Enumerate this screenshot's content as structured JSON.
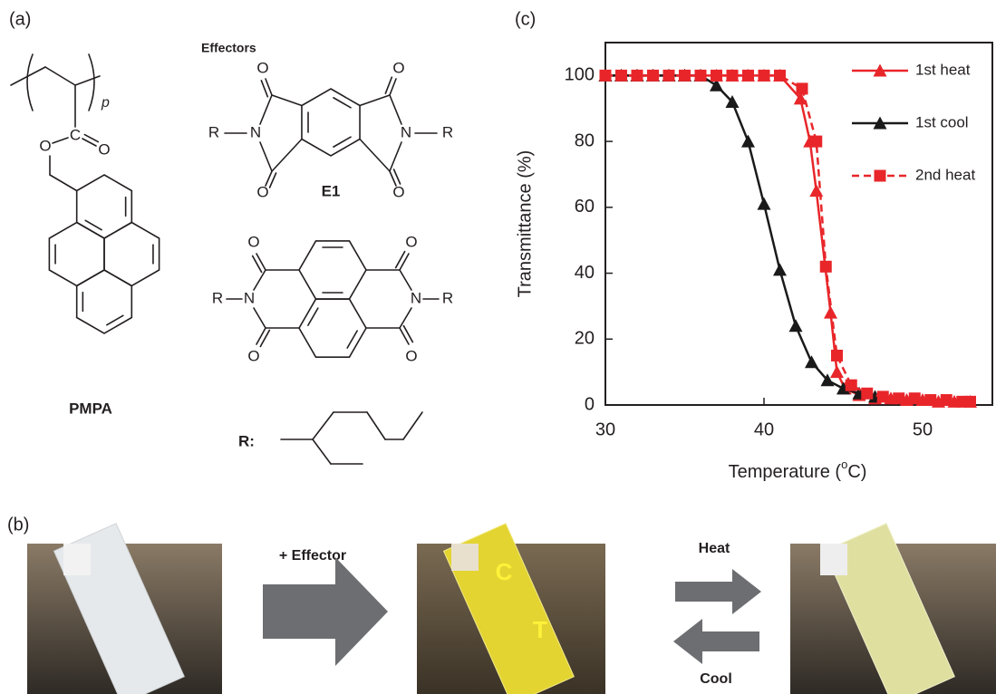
{
  "panel_a": {
    "label": "(a)",
    "effectors_title": "Effectors",
    "polymer_name": "PMPA",
    "repeat_subscript": "p",
    "e1_name": "E1",
    "r_label": "R:",
    "pmpa_atoms": [
      "O",
      "C",
      "O"
    ],
    "e1_atoms": [
      "O",
      "O",
      "O",
      "O",
      "N",
      "N",
      "R",
      "R"
    ],
    "ndi_atoms": [
      "O",
      "O",
      "O",
      "O",
      "N",
      "N",
      "R",
      "R"
    ]
  },
  "panel_b": {
    "label": "(b)",
    "forward_label": "+ Effector",
    "heat_label": "Heat",
    "cool_label": "Cool",
    "cuvette_marks": [
      "C",
      "T"
    ]
  },
  "chart_data": {
    "type": "line",
    "panel_label": "(c)",
    "y_label": "Transmittance (%)",
    "x_label_parts": [
      "Temperature (",
      "o",
      "C)"
    ],
    "xlim": [
      30,
      54.4
    ],
    "ylim": [
      0,
      110
    ],
    "xticks": [
      30,
      40,
      50
    ],
    "yticks": [
      0,
      20,
      40,
      60,
      80,
      100
    ],
    "grid": false,
    "legend": "upper right",
    "series": [
      {
        "name": "1st heat",
        "color": "#e8262a",
        "marker": "triangle",
        "dashed": false,
        "x": [
          30,
          31,
          32,
          33,
          34,
          35,
          36,
          37,
          38,
          39,
          40,
          41,
          42.3,
          42.9,
          43.3,
          44.2,
          44.6,
          45.1,
          46,
          47,
          48,
          49,
          50,
          51,
          52,
          53
        ],
        "values": [
          100,
          100,
          100,
          100,
          100,
          100,
          100,
          100,
          100,
          100,
          100,
          100,
          93,
          80,
          65,
          28,
          10,
          5,
          3,
          2,
          2,
          1.5,
          1.5,
          1,
          1,
          1
        ]
      },
      {
        "name": "1st cool",
        "color": "#1a1a1a",
        "marker": "triangle",
        "dashed": false,
        "x": [
          30,
          31,
          32,
          33,
          34,
          35,
          36,
          37,
          38,
          39,
          40,
          41,
          42,
          43,
          44,
          45,
          46,
          47
        ],
        "values": [
          100,
          100,
          100,
          100,
          100,
          100,
          100,
          97,
          92,
          80,
          61,
          41,
          24,
          13,
          7.5,
          5,
          3.5,
          2.5
        ]
      },
      {
        "name": "2nd heat",
        "color": "#e8262a",
        "marker": "square",
        "dashed": true,
        "x": [
          30,
          31,
          32,
          33,
          34,
          35,
          36,
          37,
          38,
          39,
          40,
          41,
          42.4,
          43.3,
          43.9,
          44.6,
          45.5,
          46.5,
          47.5,
          48.5,
          49.5,
          50.5,
          51.5,
          52.5,
          53
        ],
        "values": [
          100,
          100,
          100,
          100,
          100,
          100,
          100,
          100,
          100,
          100,
          100,
          100,
          96,
          80,
          42,
          15,
          6,
          3.5,
          2.5,
          2,
          2,
          1.5,
          1.5,
          1,
          1
        ]
      }
    ]
  }
}
